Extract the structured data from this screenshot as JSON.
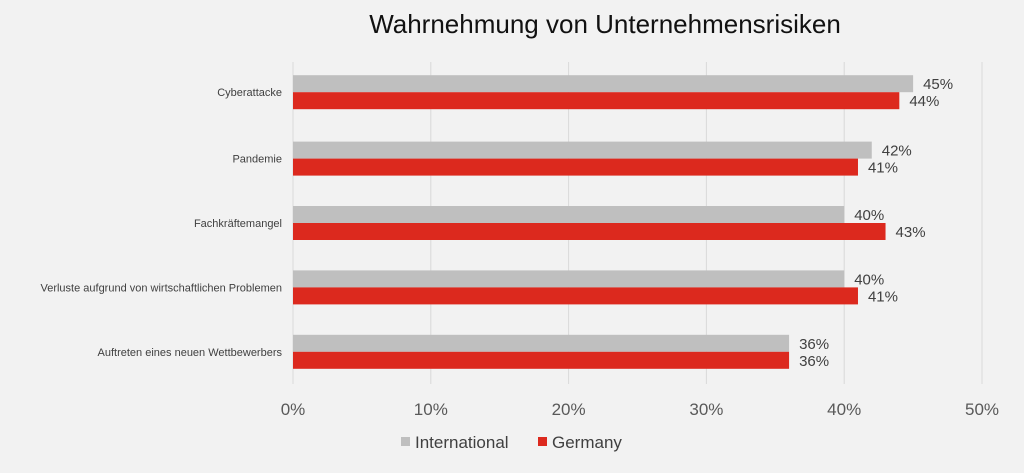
{
  "chart_data": {
    "type": "bar",
    "orientation": "horizontal",
    "title": "Wahrnehmung von Unternehmensrisiken",
    "categories": [
      "Cyberattacke",
      "Pandemie",
      "Fachkräftemangel",
      "Verluste aufgrund von wirtschaftlichen Problemen",
      "Auftreten eines neuen Wettbewerbers"
    ],
    "series": [
      {
        "name": "International",
        "values": [
          45,
          42,
          40,
          40,
          36
        ],
        "color": "#bfbfbf"
      },
      {
        "name": "Germany",
        "values": [
          44,
          41,
          43,
          41,
          36
        ],
        "color": "#dc291e"
      }
    ],
    "xlim": [
      0,
      50
    ],
    "xticks": [
      "0%",
      "10%",
      "20%",
      "30%",
      "40%",
      "50%"
    ],
    "value_suffix": "%",
    "grid": true,
    "legend": "bottom",
    "xlabel": "",
    "ylabel": ""
  }
}
